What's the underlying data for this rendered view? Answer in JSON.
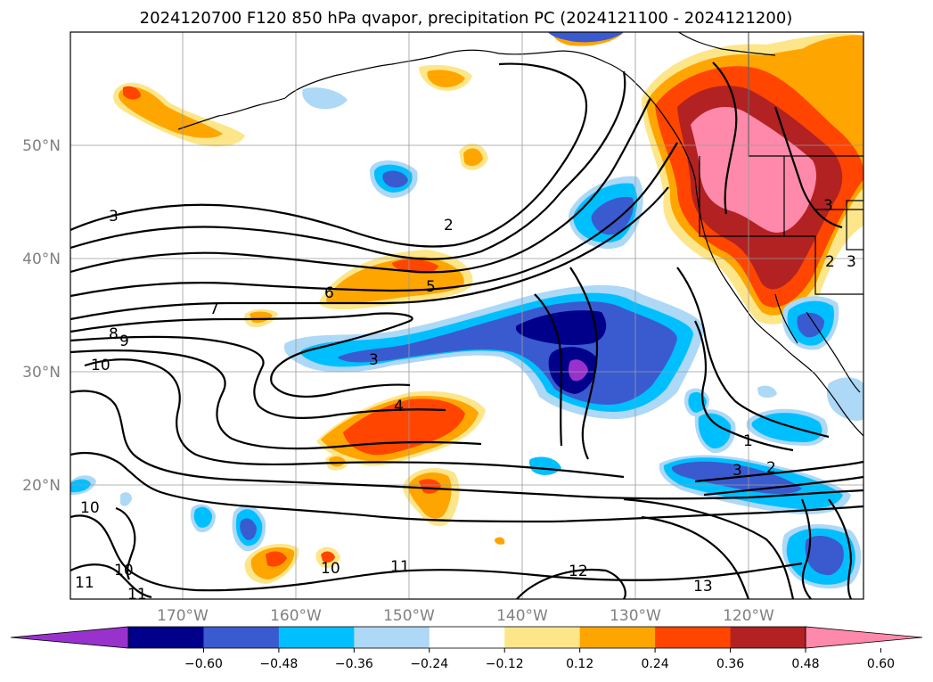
{
  "title": "2024120700 F120 850 hPa qvapor, precipitation PC (2024121100 - 2024121200)",
  "axes": {
    "lat_labels": [
      "50°N",
      "40°N",
      "30°N",
      "20°N"
    ],
    "lon_labels": [
      "170°W",
      "160°W",
      "150°W",
      "140°W",
      "130°W",
      "120°W"
    ]
  },
  "colorbar": {
    "ticks": [
      "−0.60",
      "−0.48",
      "−0.36",
      "−0.24",
      "−0.12",
      "0.12",
      "0.24",
      "0.36",
      "0.48",
      "0.60"
    ],
    "colors": [
      "#9932cc",
      "#00008b",
      "#3a5bd0",
      "#00bfff",
      "#add8f6",
      "#ffffff",
      "#fde68a",
      "#ffa500",
      "#ff4500",
      "#b22222",
      "#ff89ab"
    ],
    "extend": "both"
  },
  "contour_labels": [
    "3",
    "2",
    "7",
    "6",
    "5",
    "8",
    "9",
    "10",
    "3",
    "4",
    "1",
    "3",
    "2",
    "12",
    "13",
    "11",
    "10",
    "10",
    "11",
    "10",
    "11",
    "2",
    "3",
    "3"
  ],
  "colors": {
    "purple": "#9932cc",
    "navy": "#00008b",
    "blue": "#3a5bd0",
    "sky": "#00bfff",
    "lightblue": "#add8f6",
    "yellow": "#fde68a",
    "orange": "#ffa500",
    "redorange": "#ff4500",
    "darkred": "#b22222",
    "pink": "#ff89ab"
  }
}
